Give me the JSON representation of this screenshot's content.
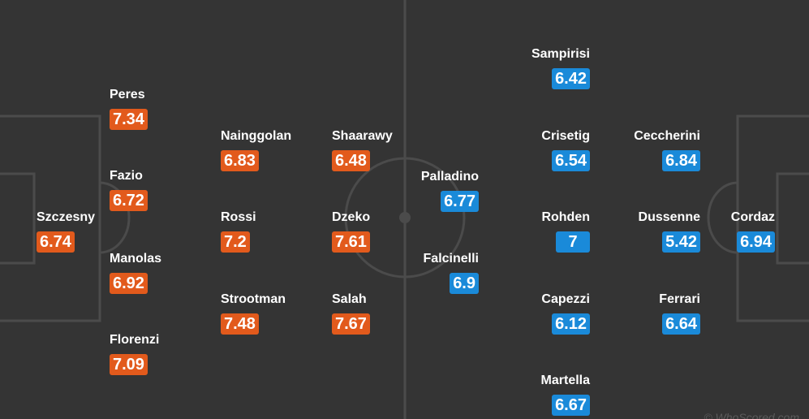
{
  "home_team": {
    "color": "#e25a1c",
    "players": [
      {
        "name": "Szczesny",
        "rating": "6.74"
      },
      {
        "name": "Peres",
        "rating": "7.34"
      },
      {
        "name": "Fazio",
        "rating": "6.72"
      },
      {
        "name": "Manolas",
        "rating": "6.92"
      },
      {
        "name": "Florenzi",
        "rating": "7.09"
      },
      {
        "name": "Nainggolan",
        "rating": "6.83"
      },
      {
        "name": "Rossi",
        "rating": "7.2"
      },
      {
        "name": "Strootman",
        "rating": "7.48"
      },
      {
        "name": "Shaarawy",
        "rating": "6.48"
      },
      {
        "name": "Dzeko",
        "rating": "7.61"
      },
      {
        "name": "Salah",
        "rating": "7.67"
      }
    ]
  },
  "away_team": {
    "color": "#1a8ad9",
    "players": [
      {
        "name": "Palladino",
        "rating": "6.77"
      },
      {
        "name": "Falcinelli",
        "rating": "6.9"
      },
      {
        "name": "Sampirisi",
        "rating": "6.42"
      },
      {
        "name": "Crisetig",
        "rating": "6.54"
      },
      {
        "name": "Rohden",
        "rating": "7"
      },
      {
        "name": "Capezzi",
        "rating": "6.12"
      },
      {
        "name": "Martella",
        "rating": "6.67"
      },
      {
        "name": "Ceccherini",
        "rating": "6.84"
      },
      {
        "name": "Dussenne",
        "rating": "5.42"
      },
      {
        "name": "Ferrari",
        "rating": "6.64"
      },
      {
        "name": "Cordaz",
        "rating": "6.94"
      }
    ]
  },
  "watermark": "© WhoScored.com"
}
